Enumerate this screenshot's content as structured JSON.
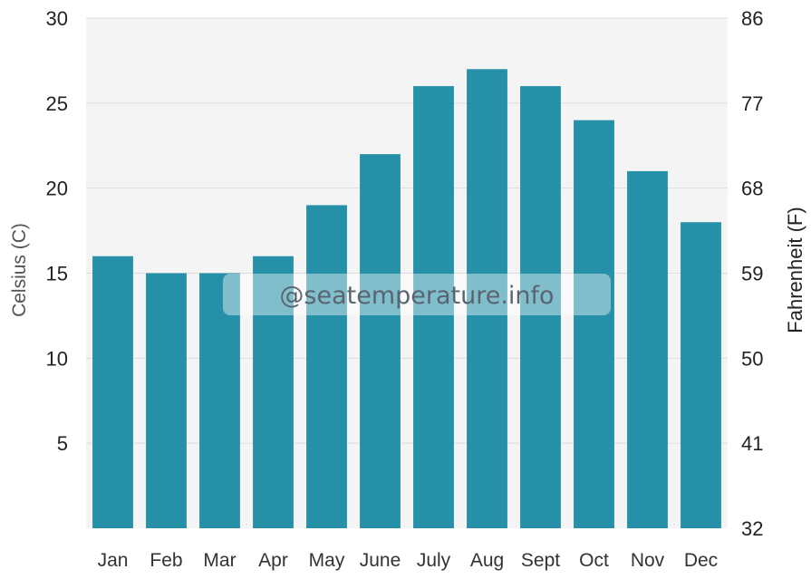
{
  "chart_data": {
    "type": "bar",
    "categories": [
      "Jan",
      "Feb",
      "Mar",
      "Apr",
      "May",
      "June",
      "July",
      "Aug",
      "Sept",
      "Oct",
      "Nov",
      "Dec"
    ],
    "values": [
      16,
      15,
      15,
      16,
      19,
      22,
      26,
      27,
      26,
      24,
      21,
      18
    ],
    "ylabel": "Celsius (C)",
    "ylabel_right": "Fahrenheit (F)",
    "ylim": [
      0,
      30
    ],
    "yticks": [
      "5",
      "10",
      "15",
      "20",
      "25",
      "30"
    ],
    "yticks_right": [
      "32",
      "41",
      "50",
      "59",
      "68",
      "77",
      "86"
    ],
    "grid": true,
    "bar_color": "#2590a8",
    "plot_background": "#f4f4f4",
    "watermark": "@seatemperature.info"
  }
}
